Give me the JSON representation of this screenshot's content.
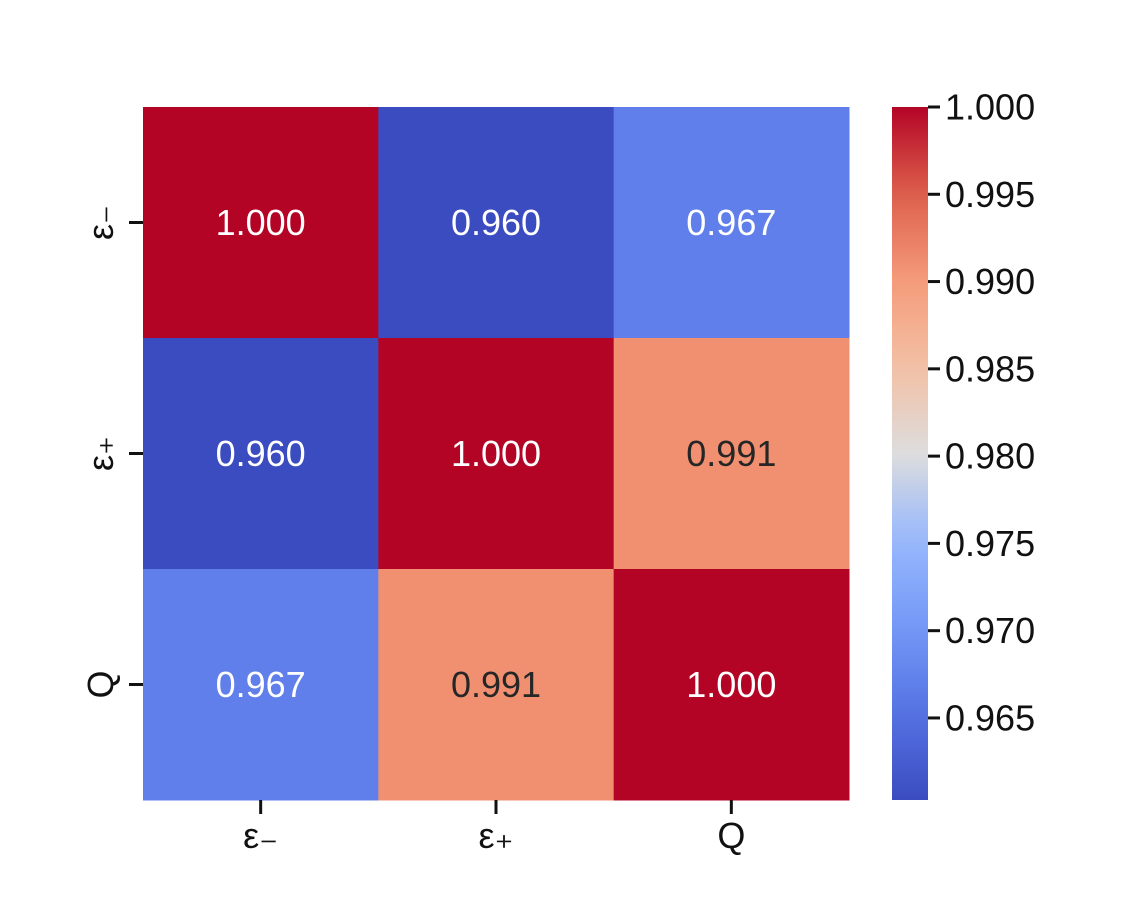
{
  "chart_data": {
    "type": "heatmap",
    "title": "",
    "xlabel": "",
    "ylabel": "",
    "x_categories": [
      "ε₋",
      "ε₊",
      "Q"
    ],
    "y_categories": [
      "ε₋",
      "ε₊",
      "Q"
    ],
    "values": [
      [
        1.0,
        0.96,
        0.967
      ],
      [
        0.96,
        1.0,
        0.991
      ],
      [
        0.967,
        0.991,
        1.0
      ]
    ],
    "cell_labels": [
      [
        "1.000",
        "0.960",
        "0.967"
      ],
      [
        "0.960",
        "1.000",
        "0.991"
      ],
      [
        "0.967",
        "0.991",
        "1.000"
      ]
    ],
    "colormap": "coolwarm",
    "colorbar": {
      "range": [
        0.9603,
        1.0
      ],
      "ticks": [
        1.0,
        0.995,
        0.99,
        0.985,
        0.98,
        0.975,
        0.97,
        0.965
      ],
      "tick_labels": [
        "1.000",
        "0.995",
        "0.990",
        "0.985",
        "0.980",
        "0.975",
        "0.970",
        "0.965"
      ]
    },
    "grid": false,
    "legend": "colorbar-right"
  }
}
